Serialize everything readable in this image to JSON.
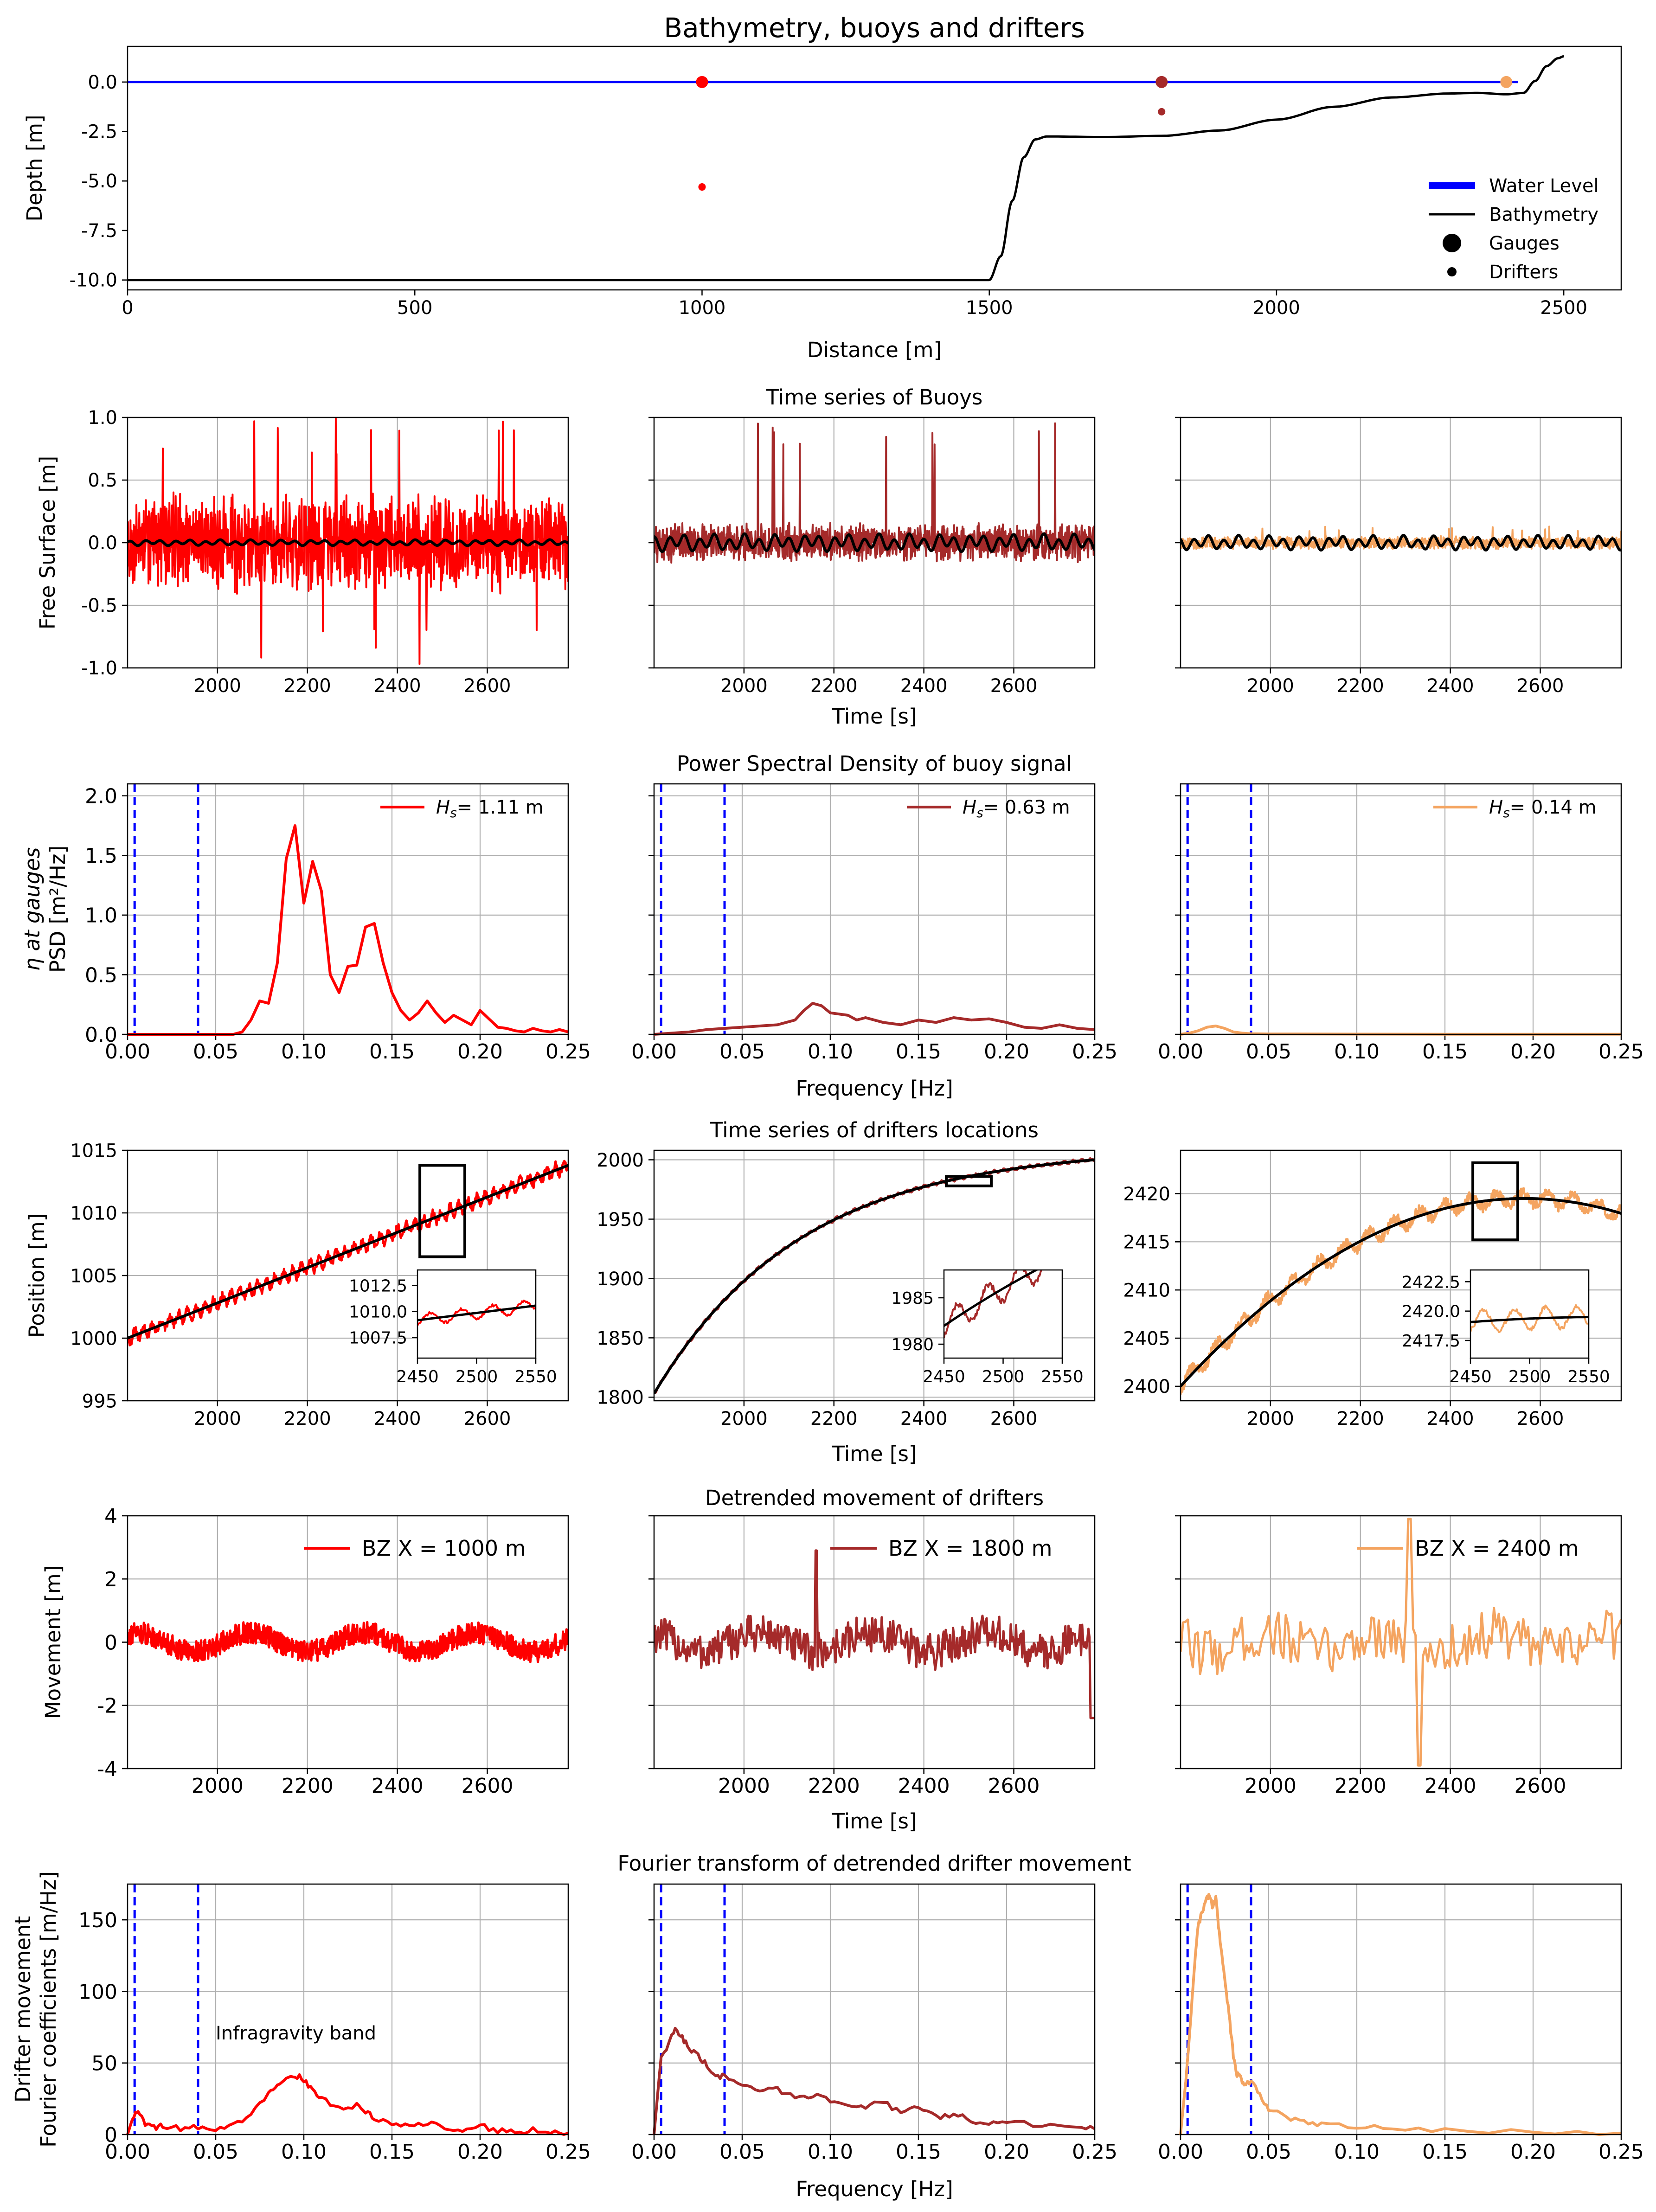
{
  "figure": {
    "title": "Bathymetry, buoys and drifters",
    "row_titles": {
      "buoys": "Time series of Buoys",
      "psd": "Power Spectral Density of buoy signal",
      "drifters": "Time series of drifters locations",
      "detrended": "Detrended movement of drifters",
      "fourier": "Fourier transform of detrended drifter movement"
    }
  },
  "colors": {
    "g1": "#ff0000",
    "g2": "#a52a2a",
    "g3": "#f4a460",
    "water": "#0000ff",
    "black": "#000000",
    "band": "#0000ff",
    "grid": "#b0b0b0"
  },
  "chart_data": [
    {
      "id": "bathymetry",
      "type": "line",
      "title": "Bathymetry, buoys and drifters",
      "xlabel": "Distance [m]",
      "ylabel": "Depth [m]",
      "xlim": [
        0,
        2600
      ],
      "ylim": [
        -10.5,
        1.8
      ],
      "xticks": [
        0,
        500,
        1000,
        1500,
        2000,
        2500
      ],
      "yticks": [
        0.0,
        -2.5,
        -5.0,
        -7.5,
        -10.0
      ],
      "grid": false,
      "legend": {
        "position": "lower-right",
        "entries": [
          "Water Level",
          "Bathymetry",
          "Gauges",
          "Drifters"
        ]
      },
      "series": [
        {
          "name": "Water Level",
          "x": [
            0,
            2420
          ],
          "y": [
            0,
            0
          ]
        },
        {
          "name": "Bathymetry",
          "x": [
            0,
            1500,
            1520,
            1540,
            1560,
            1580,
            1600,
            1700,
            1800,
            1900,
            2000,
            2100,
            2200,
            2300,
            2350,
            2400,
            2430,
            2450,
            2470,
            2490,
            2500
          ],
          "y": [
            -10,
            -10,
            -8.8,
            -6.0,
            -3.8,
            -2.9,
            -2.75,
            -2.78,
            -2.72,
            -2.45,
            -1.9,
            -1.25,
            -0.78,
            -0.58,
            -0.55,
            -0.62,
            -0.55,
            0.05,
            0.8,
            1.2,
            1.3
          ]
        }
      ],
      "gauges": [
        {
          "x": 1000,
          "y": 0
        },
        {
          "x": 1800,
          "y": 0
        },
        {
          "x": 2400,
          "y": 0
        }
      ],
      "drifters": [
        {
          "x": 1000,
          "y": -5.3
        },
        {
          "x": 1800,
          "y": -1.5
        },
        {
          "x": 2400,
          "y": -0.1
        }
      ]
    },
    {
      "id": "buoys",
      "type": "line",
      "title": "Time series of Buoys",
      "ylabel": "Free Surface [m]",
      "xlabel": "Time [s]",
      "xlim": [
        1800,
        2780
      ],
      "ylim": [
        -1.0,
        1.0
      ],
      "xticks": [
        2000,
        2200,
        2400,
        2600
      ],
      "yticks": [
        -1.0,
        -0.5,
        0.0,
        0.5,
        1.0
      ],
      "grid": true,
      "panels": [
        {
          "gauge_x": 1000,
          "amplitude": 0.3,
          "peak": 1.0,
          "trough": -0.97,
          "smooth_amplitude": 0.02
        },
        {
          "gauge_x": 1800,
          "amplitude": 0.12,
          "peak": 1.0,
          "trough": -0.15,
          "smooth_amplitude": 0.06
        },
        {
          "gauge_x": 2400,
          "amplitude": 0.04,
          "peak": 0.13,
          "trough": -0.05,
          "smooth_amplitude": 0.05
        }
      ]
    },
    {
      "id": "psd",
      "type": "line",
      "title": "Power Spectral Density of buoy signal",
      "ylabel": "η at gauges PSD [m²/Hz]",
      "ylabel_lines": [
        "η at gauges",
        "PSD [m²/Hz]"
      ],
      "xlabel": "Frequency [Hz]",
      "xlim": [
        0,
        0.25
      ],
      "ylim": [
        0,
        2.1
      ],
      "xticks": [
        "0.00",
        "0.05",
        "0.10",
        "0.15",
        "0.20",
        "0.25"
      ],
      "yticks": [
        "0.0",
        "0.5",
        "1.0",
        "1.5",
        "2.0"
      ],
      "band": [
        0.004,
        0.04
      ],
      "grid": true,
      "series": [
        {
          "name": "H_s = 1.11 m",
          "hs_label": "= 1.11 m",
          "x": [
            0,
            0.04,
            0.06,
            0.065,
            0.07,
            0.075,
            0.08,
            0.085,
            0.09,
            0.095,
            0.1,
            0.105,
            0.11,
            0.115,
            0.12,
            0.125,
            0.13,
            0.135,
            0.14,
            0.145,
            0.15,
            0.155,
            0.16,
            0.165,
            0.17,
            0.175,
            0.18,
            0.185,
            0.19,
            0.195,
            0.2,
            0.205,
            0.21,
            0.215,
            0.22,
            0.225,
            0.23,
            0.235,
            0.24,
            0.245,
            0.25
          ],
          "y": [
            0,
            0,
            0.0,
            0.02,
            0.12,
            0.28,
            0.26,
            0.6,
            1.47,
            1.75,
            1.1,
            1.45,
            1.2,
            0.5,
            0.35,
            0.57,
            0.58,
            0.9,
            0.93,
            0.6,
            0.35,
            0.2,
            0.12,
            0.18,
            0.28,
            0.18,
            0.1,
            0.16,
            0.12,
            0.08,
            0.2,
            0.13,
            0.06,
            0.05,
            0.03,
            0.02,
            0.05,
            0.03,
            0.02,
            0.04,
            0.02
          ]
        },
        {
          "name": "H_s = 0.63 m",
          "hs_label": "= 0.63 m",
          "x": [
            0,
            0.02,
            0.03,
            0.04,
            0.05,
            0.06,
            0.07,
            0.08,
            0.085,
            0.09,
            0.095,
            0.1,
            0.11,
            0.115,
            0.12,
            0.13,
            0.14,
            0.15,
            0.16,
            0.17,
            0.18,
            0.19,
            0.2,
            0.21,
            0.22,
            0.23,
            0.24,
            0.25
          ],
          "y": [
            0,
            0.02,
            0.04,
            0.05,
            0.06,
            0.07,
            0.08,
            0.12,
            0.2,
            0.26,
            0.24,
            0.18,
            0.16,
            0.12,
            0.14,
            0.1,
            0.08,
            0.12,
            0.1,
            0.14,
            0.12,
            0.13,
            0.1,
            0.06,
            0.05,
            0.08,
            0.05,
            0.04
          ]
        },
        {
          "name": "H_s = 0.14 m",
          "hs_label": "= 0.14 m",
          "x": [
            0,
            0.005,
            0.01,
            0.015,
            0.02,
            0.025,
            0.03,
            0.035,
            0.04,
            0.05,
            0.1,
            0.15,
            0.2,
            0.25
          ],
          "y": [
            0,
            0.01,
            0.03,
            0.06,
            0.07,
            0.05,
            0.02,
            0.01,
            0.005,
            0.003,
            0.002,
            0.001,
            0.001,
            0.001
          ]
        }
      ]
    },
    {
      "id": "drifters",
      "type": "line",
      "title": "Time series of drifters locations",
      "ylabel": "Position [m]",
      "xlabel": "Time [s]",
      "xlim": [
        1800,
        2780
      ],
      "xticks": [
        2000,
        2200,
        2400,
        2600
      ],
      "grid": true,
      "panels": [
        {
          "ylim": [
            995,
            1015
          ],
          "yticks": [
            995,
            1000,
            1005,
            1010,
            1015
          ],
          "start": 1000,
          "end": 1013.8,
          "shape": "linear",
          "noise": 0.6,
          "box": [
            2450,
            2550,
            1006.5,
            1013.8
          ],
          "inset": {
            "xlim": [
              2450,
              2550
            ],
            "ylim": [
              1005.5,
              1014
            ],
            "xticks": [
              2450,
              2500,
              2550
            ],
            "yticks": [
              "1007.5",
              "1010.0",
              "1012.5"
            ]
          }
        },
        {
          "ylim": [
            1797,
            2008
          ],
          "yticks": [
            1800,
            1850,
            1900,
            1950,
            2000
          ],
          "start": 1803,
          "end": 2000,
          "shape": "saturating",
          "noise": 1.5,
          "box": [
            2450,
            2550,
            1978,
            1986
          ],
          "inset": {
            "xlim": [
              2450,
              2550
            ],
            "ylim": [
              1978.5,
              1988
            ],
            "xticks": [
              2450,
              2500,
              2550
            ],
            "yticks": [
              "1980",
              "1985"
            ]
          }
        },
        {
          "ylim": [
            2398.5,
            2424.5
          ],
          "yticks": [
            2400,
            2405,
            2410,
            2415,
            2420
          ],
          "start": 2400,
          "end": 2417.3,
          "shape": "parabolic",
          "noise": 1.0,
          "box": [
            2450,
            2550,
            2415.2,
            2423.2
          ],
          "inset": {
            "xlim": [
              2450,
              2550
            ],
            "ylim": [
              2416,
              2423.5
            ],
            "xticks": [
              2450,
              2500,
              2550
            ],
            "yticks": [
              "2417.5",
              "2420.0",
              "2422.5"
            ]
          }
        }
      ]
    },
    {
      "id": "detrended",
      "type": "line",
      "title": "Detrended movement of drifters",
      "ylabel": "Movement [m]",
      "xlabel": "Time [s]",
      "xlim": [
        1800,
        2780
      ],
      "ylim": [
        -4,
        4
      ],
      "xticks": [
        2000,
        2200,
        2400,
        2600
      ],
      "yticks": [
        -4,
        -2,
        0,
        2,
        4
      ],
      "grid": true,
      "panels": [
        {
          "legend": "BZ X = 1000 m",
          "amplitude": 0.35
        },
        {
          "legend": "BZ X = 1800 m",
          "amplitude": 0.6
        },
        {
          "legend": "BZ X = 2400 m",
          "amplitude": 0.8
        }
      ]
    },
    {
      "id": "fourier",
      "type": "line",
      "title": "Fourier transform of detrended drifter movement",
      "ylabel": "Drifter movement Fourier coefficients [m/Hz]",
      "ylabel_lines": [
        "Drifter movement",
        "Fourier coefficients [m/Hz]"
      ],
      "xlabel": "Frequency [Hz]",
      "xlim": [
        0,
        0.25
      ],
      "ylim": [
        0,
        175
      ],
      "xticks": [
        "0.00",
        "0.05",
        "0.10",
        "0.15",
        "0.20",
        "0.25"
      ],
      "yticks": [
        0,
        50,
        100,
        150
      ],
      "band": [
        0.004,
        0.04
      ],
      "annotation": "Infragravity band",
      "grid": true,
      "series": [
        {
          "name": "BZ X = 1000 m",
          "x": [
            0,
            0.003,
            0.006,
            0.01,
            0.015,
            0.02,
            0.03,
            0.04,
            0.05,
            0.06,
            0.07,
            0.08,
            0.085,
            0.09,
            0.095,
            0.1,
            0.105,
            0.11,
            0.12,
            0.13,
            0.135,
            0.14,
            0.15,
            0.16,
            0.17,
            0.18,
            0.19,
            0.2,
            0.21,
            0.22,
            0.23,
            0.24,
            0.25
          ],
          "y": [
            0,
            12,
            18,
            8,
            5,
            6,
            4,
            5,
            3,
            6,
            15,
            28,
            36,
            40,
            42,
            38,
            32,
            25,
            18,
            20,
            16,
            12,
            8,
            6,
            8,
            5,
            4,
            6,
            3,
            2,
            3,
            2,
            1
          ]
        },
        {
          "name": "BZ X = 1800 m",
          "x": [
            0,
            0.004,
            0.008,
            0.012,
            0.016,
            0.02,
            0.025,
            0.03,
            0.035,
            0.04,
            0.05,
            0.06,
            0.07,
            0.08,
            0.09,
            0.1,
            0.11,
            0.12,
            0.13,
            0.14,
            0.15,
            0.16,
            0.17,
            0.18,
            0.19,
            0.2,
            0.22,
            0.24,
            0.25
          ],
          "y": [
            0,
            55,
            62,
            74,
            68,
            60,
            55,
            48,
            42,
            40,
            36,
            30,
            32,
            25,
            28,
            24,
            22,
            20,
            22,
            16,
            18,
            12,
            14,
            10,
            8,
            9,
            6,
            5,
            4
          ]
        },
        {
          "name": "BZ X = 2400 m",
          "x": [
            0,
            0.003,
            0.006,
            0.008,
            0.01,
            0.012,
            0.014,
            0.016,
            0.018,
            0.02,
            0.022,
            0.024,
            0.026,
            0.028,
            0.03,
            0.032,
            0.034,
            0.036,
            0.04,
            0.045,
            0.05,
            0.06,
            0.07,
            0.08,
            0.1,
            0.12,
            0.15,
            0.2,
            0.25
          ],
          "y": [
            0,
            38,
            85,
            120,
            145,
            155,
            162,
            168,
            160,
            165,
            140,
            120,
            100,
            78,
            55,
            42,
            40,
            35,
            38,
            28,
            18,
            12,
            8,
            7,
            5,
            4,
            3,
            2,
            1
          ]
        }
      ]
    }
  ]
}
